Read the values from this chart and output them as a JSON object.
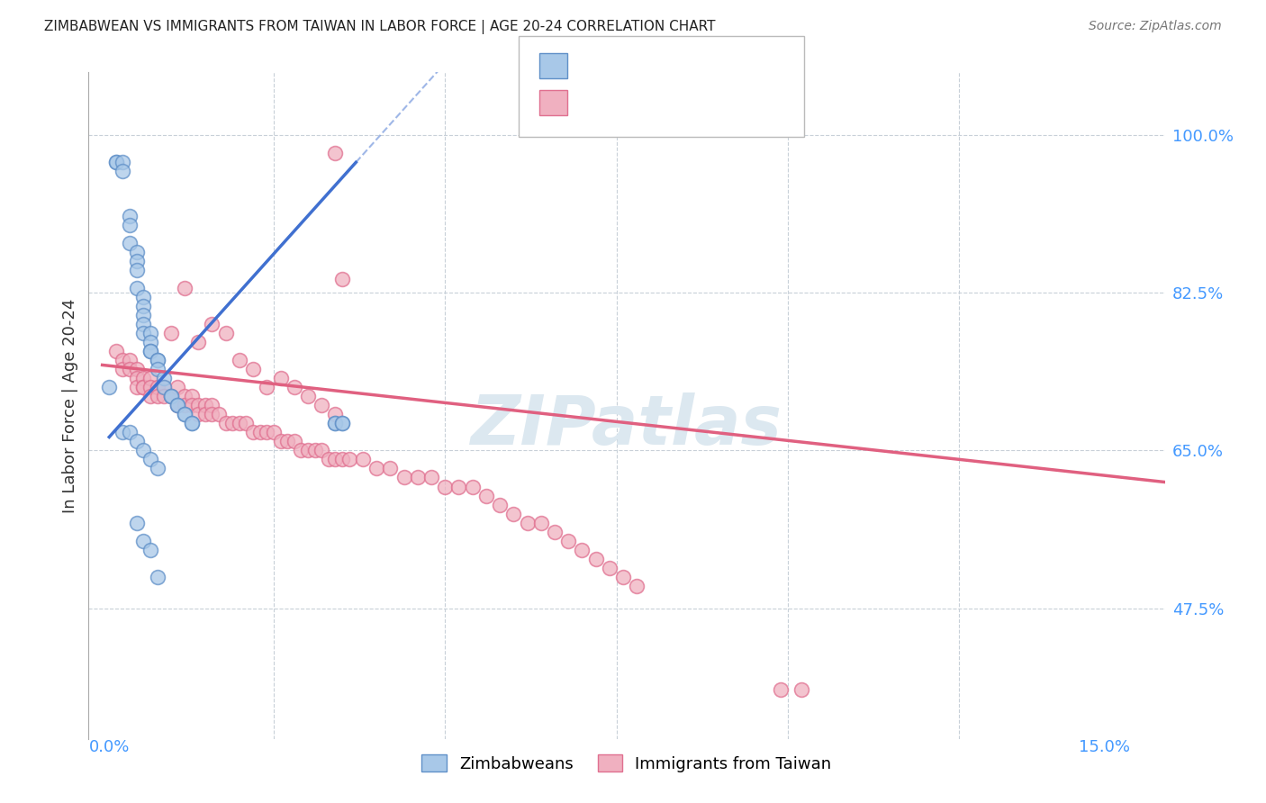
{
  "title": "ZIMBABWEAN VS IMMIGRANTS FROM TAIWAN IN LABOR FORCE | AGE 20-24 CORRELATION CHART",
  "source": "Source: ZipAtlas.com",
  "ylabel": "In Labor Force | Age 20-24",
  "yticks": [
    0.475,
    0.65,
    0.825,
    1.0
  ],
  "ytick_labels": [
    "47.5%",
    "65.0%",
    "82.5%",
    "100.0%"
  ],
  "xlim": [
    -0.002,
    0.155
  ],
  "ylim": [
    0.33,
    1.07
  ],
  "plot_ylim": [
    0.33,
    1.07
  ],
  "n_zimbabwean": 48,
  "n_taiwan": 90,
  "color_zimbabwean_fill": "#a8c8e8",
  "color_zimbabwean_edge": "#6090c8",
  "color_taiwan_fill": "#f0b0c0",
  "color_taiwan_edge": "#e07090",
  "color_zimbabwean_line": "#4070d0",
  "color_taiwan_line": "#e06080",
  "watermark_color": "#dce8f0",
  "grid_color": "#c8d0d8",
  "zim_x": [
    0.001,
    0.002,
    0.002,
    0.003,
    0.003,
    0.004,
    0.004,
    0.004,
    0.005,
    0.005,
    0.005,
    0.005,
    0.006,
    0.006,
    0.006,
    0.006,
    0.006,
    0.007,
    0.007,
    0.007,
    0.007,
    0.008,
    0.008,
    0.008,
    0.009,
    0.009,
    0.01,
    0.01,
    0.011,
    0.011,
    0.012,
    0.012,
    0.013,
    0.013,
    0.034,
    0.034,
    0.035,
    0.035,
    0.003,
    0.004,
    0.005,
    0.006,
    0.007,
    0.008,
    0.005,
    0.006,
    0.007,
    0.008
  ],
  "zim_y": [
    0.72,
    0.97,
    0.97,
    0.97,
    0.96,
    0.91,
    0.9,
    0.88,
    0.87,
    0.86,
    0.85,
    0.83,
    0.82,
    0.81,
    0.8,
    0.79,
    0.78,
    0.78,
    0.77,
    0.76,
    0.76,
    0.75,
    0.75,
    0.74,
    0.73,
    0.72,
    0.71,
    0.71,
    0.7,
    0.7,
    0.69,
    0.69,
    0.68,
    0.68,
    0.68,
    0.68,
    0.68,
    0.68,
    0.67,
    0.67,
    0.66,
    0.65,
    0.64,
    0.63,
    0.57,
    0.55,
    0.54,
    0.51
  ],
  "tai_x": [
    0.002,
    0.003,
    0.003,
    0.004,
    0.004,
    0.005,
    0.005,
    0.005,
    0.006,
    0.006,
    0.006,
    0.007,
    0.007,
    0.007,
    0.008,
    0.008,
    0.009,
    0.009,
    0.01,
    0.01,
    0.011,
    0.011,
    0.012,
    0.012,
    0.013,
    0.013,
    0.014,
    0.014,
    0.015,
    0.015,
    0.016,
    0.016,
    0.017,
    0.018,
    0.019,
    0.02,
    0.021,
    0.022,
    0.023,
    0.024,
    0.025,
    0.026,
    0.027,
    0.028,
    0.029,
    0.03,
    0.031,
    0.032,
    0.033,
    0.034,
    0.035,
    0.036,
    0.038,
    0.04,
    0.042,
    0.044,
    0.046,
    0.048,
    0.05,
    0.052,
    0.034,
    0.035,
    0.01,
    0.012,
    0.014,
    0.016,
    0.018,
    0.02,
    0.022,
    0.024,
    0.026,
    0.028,
    0.03,
    0.032,
    0.034,
    0.054,
    0.056,
    0.058,
    0.06,
    0.062,
    0.064,
    0.066,
    0.068,
    0.07,
    0.072,
    0.074,
    0.076,
    0.078,
    0.099,
    0.102
  ],
  "tai_y": [
    0.76,
    0.75,
    0.74,
    0.75,
    0.74,
    0.74,
    0.73,
    0.72,
    0.73,
    0.72,
    0.72,
    0.73,
    0.72,
    0.71,
    0.72,
    0.71,
    0.72,
    0.71,
    0.71,
    0.71,
    0.72,
    0.7,
    0.71,
    0.7,
    0.71,
    0.7,
    0.7,
    0.69,
    0.7,
    0.69,
    0.7,
    0.69,
    0.69,
    0.68,
    0.68,
    0.68,
    0.68,
    0.67,
    0.67,
    0.67,
    0.67,
    0.66,
    0.66,
    0.66,
    0.65,
    0.65,
    0.65,
    0.65,
    0.64,
    0.64,
    0.64,
    0.64,
    0.64,
    0.63,
    0.63,
    0.62,
    0.62,
    0.62,
    0.61,
    0.61,
    0.98,
    0.84,
    0.78,
    0.83,
    0.77,
    0.79,
    0.78,
    0.75,
    0.74,
    0.72,
    0.73,
    0.72,
    0.71,
    0.7,
    0.69,
    0.61,
    0.6,
    0.59,
    0.58,
    0.57,
    0.57,
    0.56,
    0.55,
    0.54,
    0.53,
    0.52,
    0.51,
    0.5,
    0.385,
    0.385
  ]
}
